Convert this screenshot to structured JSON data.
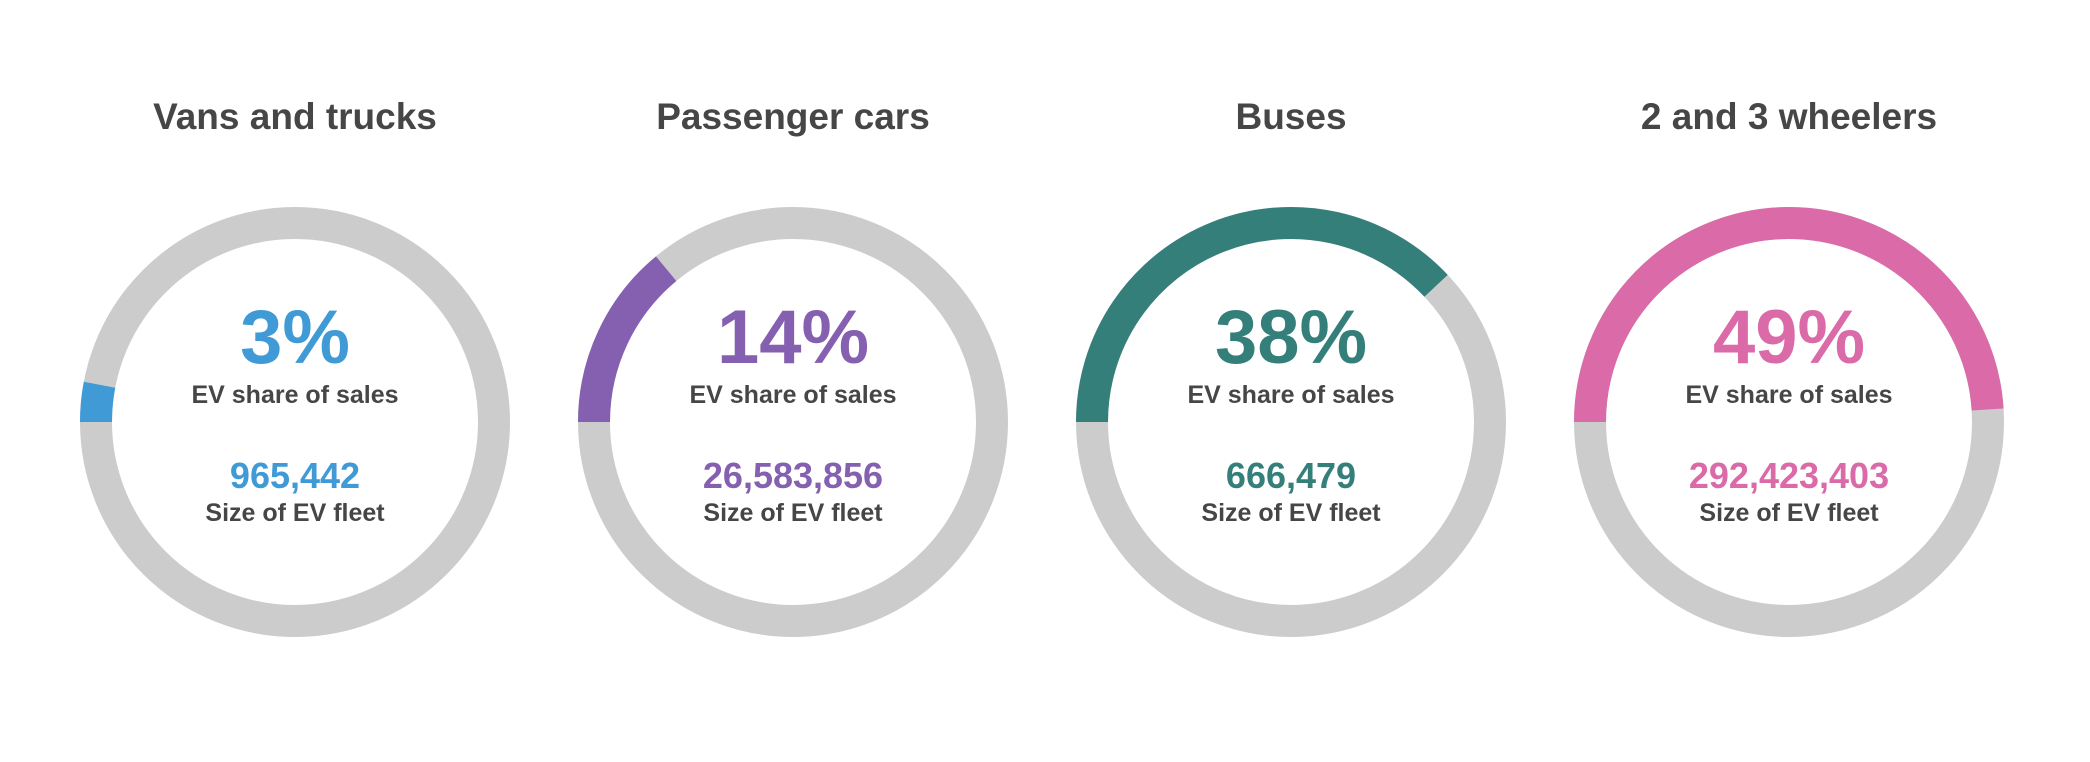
{
  "chart_data": {
    "type": "donut-gauge",
    "track_color": "#cccccc",
    "metric_label": "EV share of sales",
    "count_label": "Size of EV fleet",
    "panels": [
      {
        "title": "Vans and trucks",
        "ev_share_text": "3%",
        "ev_share": 3,
        "fleet_text": "965,442",
        "fleet": 965442,
        "share_label": "EV share of sales",
        "fleet_label": "Size of EV fleet",
        "color": "#3f9ad6"
      },
      {
        "title": "Passenger cars",
        "ev_share_text": "14%",
        "ev_share": 14,
        "fleet_text": "26,583,856",
        "fleet": 26583856,
        "share_label": "EV share of sales",
        "fleet_label": "Size of EV fleet",
        "color": "#8560b0"
      },
      {
        "title": "Buses",
        "ev_share_text": "38%",
        "ev_share": 38,
        "fleet_text": "666,479",
        "fleet": 666479,
        "share_label": "EV share of sales",
        "fleet_label": "Size of EV fleet",
        "color": "#357f7b"
      },
      {
        "title": "2 and 3 wheelers",
        "ev_share_text": "49%",
        "ev_share": 49,
        "fleet_text": "292,423,403",
        "fleet": 292423403,
        "share_label": "EV share of sales",
        "fleet_label": "Size of EV fleet",
        "color": "#da6aa8"
      }
    ]
  }
}
